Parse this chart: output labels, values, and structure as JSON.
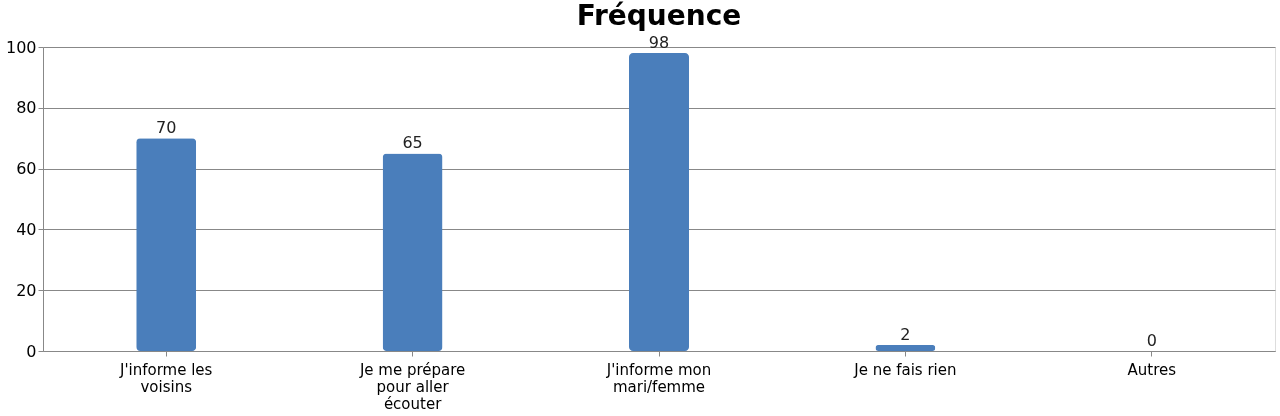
{
  "chart_data": {
    "type": "bar",
    "title": "Fréquence",
    "categories": [
      "J'informe les voisins",
      "Je me prépare pour aller écouter",
      "J'informe mon mari/femme",
      "Je ne fais rien",
      "Autres"
    ],
    "values": [
      70,
      65,
      98,
      2,
      0
    ],
    "color": "#4a7ebb",
    "ylim": [
      0,
      100
    ],
    "yticks": [
      0,
      20,
      40,
      60,
      80,
      100
    ],
    "grid": "y",
    "data_labels": true
  }
}
